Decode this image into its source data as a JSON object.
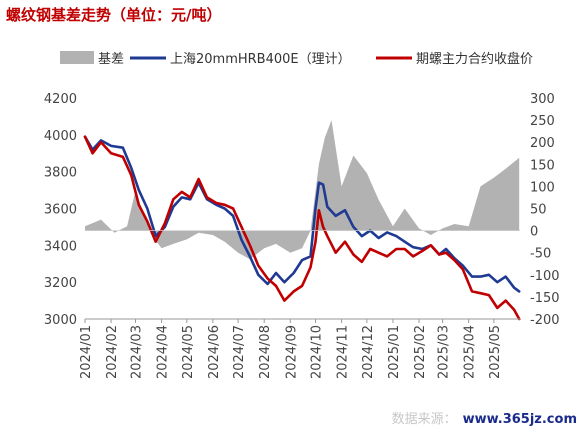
{
  "title": "螺纹钢基差走势（单位：元/吨）",
  "watermark": {
    "faint": "数据来源：",
    "site": "www.365jz.com"
  },
  "chart_data": {
    "type": "line",
    "title": "螺纹钢基差走势（单位：元/吨）",
    "x_range": [
      "2024-01-01",
      "2025-06-01"
    ],
    "x_ticks": [
      "2024/01",
      "2024/02",
      "2024/03",
      "2024/04",
      "2024/05",
      "2024/06",
      "2024/07",
      "2024/08",
      "2024/09",
      "2024/10",
      "2024/11",
      "2024/12",
      "2025/01",
      "2025/02",
      "2025/03",
      "2025/04",
      "2025/05"
    ],
    "y_left": {
      "min": 3000,
      "max": 4200,
      "ticks": [
        3000,
        3200,
        3400,
        3600,
        3800,
        4000,
        4200
      ]
    },
    "y_right": {
      "min": -200,
      "max": 300,
      "ticks": [
        -200,
        -150,
        -100,
        -50,
        0,
        50,
        100,
        150,
        200,
        250,
        300
      ]
    },
    "grid": false,
    "legend_position": "top",
    "series": [
      {
        "name": "基差",
        "type": "area",
        "axis": "right",
        "color": "#b2b2b2",
        "points": [
          [
            "2024-01-01",
            10
          ],
          [
            "2024-01-20",
            25
          ],
          [
            "2024-02-05",
            -5
          ],
          [
            "2024-02-20",
            10
          ],
          [
            "2024-03-01",
            90
          ],
          [
            "2024-03-10",
            40
          ],
          [
            "2024-03-20",
            -10
          ],
          [
            "2024-04-01",
            -40
          ],
          [
            "2024-04-15",
            -30
          ],
          [
            "2024-05-01",
            -20
          ],
          [
            "2024-05-15",
            -5
          ],
          [
            "2024-06-01",
            -10
          ],
          [
            "2024-06-15",
            -25
          ],
          [
            "2024-07-01",
            -50
          ],
          [
            "2024-07-15",
            -65
          ],
          [
            "2024-08-01",
            -40
          ],
          [
            "2024-08-15",
            -30
          ],
          [
            "2024-09-01",
            -50
          ],
          [
            "2024-09-15",
            -40
          ],
          [
            "2024-09-25",
            0
          ],
          [
            "2024-10-05",
            150
          ],
          [
            "2024-10-12",
            210
          ],
          [
            "2024-10-20",
            250
          ],
          [
            "2024-11-01",
            100
          ],
          [
            "2024-11-15",
            170
          ],
          [
            "2024-12-01",
            130
          ],
          [
            "2024-12-15",
            70
          ],
          [
            "2025-01-01",
            10
          ],
          [
            "2025-01-15",
            50
          ],
          [
            "2025-02-01",
            5
          ],
          [
            "2025-02-15",
            -10
          ],
          [
            "2025-03-01",
            5
          ],
          [
            "2025-03-15",
            15
          ],
          [
            "2025-04-01",
            10
          ],
          [
            "2025-04-15",
            100
          ],
          [
            "2025-05-01",
            120
          ],
          [
            "2025-05-15",
            140
          ],
          [
            "2025-05-31",
            165
          ]
        ]
      },
      {
        "name": "上海20mmHRB400E（理计）",
        "type": "line",
        "axis": "left",
        "color": "#1f3a93",
        "points": [
          [
            "2024-01-01",
            3990
          ],
          [
            "2024-01-10",
            3920
          ],
          [
            "2024-01-20",
            3970
          ],
          [
            "2024-02-01",
            3940
          ],
          [
            "2024-02-15",
            3930
          ],
          [
            "2024-02-25",
            3820
          ],
          [
            "2024-03-05",
            3700
          ],
          [
            "2024-03-15",
            3600
          ],
          [
            "2024-03-25",
            3450
          ],
          [
            "2024-04-05",
            3500
          ],
          [
            "2024-04-15",
            3610
          ],
          [
            "2024-04-25",
            3660
          ],
          [
            "2024-05-05",
            3650
          ],
          [
            "2024-05-15",
            3740
          ],
          [
            "2024-05-25",
            3650
          ],
          [
            "2024-06-05",
            3620
          ],
          [
            "2024-06-15",
            3600
          ],
          [
            "2024-06-25",
            3560
          ],
          [
            "2024-07-05",
            3430
          ],
          [
            "2024-07-15",
            3340
          ],
          [
            "2024-07-25",
            3240
          ],
          [
            "2024-08-05",
            3190
          ],
          [
            "2024-08-15",
            3250
          ],
          [
            "2024-08-25",
            3200
          ],
          [
            "2024-09-05",
            3250
          ],
          [
            "2024-09-15",
            3320
          ],
          [
            "2024-09-25",
            3340
          ],
          [
            "2024-10-01",
            3600
          ],
          [
            "2024-10-05",
            3740
          ],
          [
            "2024-10-10",
            3730
          ],
          [
            "2024-10-15",
            3610
          ],
          [
            "2024-10-25",
            3560
          ],
          [
            "2024-11-05",
            3590
          ],
          [
            "2024-11-15",
            3500
          ],
          [
            "2024-11-25",
            3450
          ],
          [
            "2024-12-05",
            3480
          ],
          [
            "2024-12-15",
            3440
          ],
          [
            "2024-12-25",
            3470
          ],
          [
            "2025-01-05",
            3450
          ],
          [
            "2025-01-15",
            3420
          ],
          [
            "2025-01-25",
            3390
          ],
          [
            "2025-02-05",
            3380
          ],
          [
            "2025-02-15",
            3400
          ],
          [
            "2025-02-25",
            3350
          ],
          [
            "2025-03-05",
            3380
          ],
          [
            "2025-03-15",
            3330
          ],
          [
            "2025-03-25",
            3290
          ],
          [
            "2025-04-05",
            3230
          ],
          [
            "2025-04-15",
            3230
          ],
          [
            "2025-04-25",
            3240
          ],
          [
            "2025-05-05",
            3200
          ],
          [
            "2025-05-15",
            3230
          ],
          [
            "2025-05-25",
            3170
          ],
          [
            "2025-05-31",
            3150
          ]
        ]
      },
      {
        "name": "期螺主力合约收盘价",
        "type": "line",
        "axis": "left",
        "color": "#c00000",
        "points": [
          [
            "2024-01-01",
            3990
          ],
          [
            "2024-01-10",
            3900
          ],
          [
            "2024-01-20",
            3960
          ],
          [
            "2024-02-01",
            3900
          ],
          [
            "2024-02-15",
            3880
          ],
          [
            "2024-02-25",
            3780
          ],
          [
            "2024-03-05",
            3620
          ],
          [
            "2024-03-15",
            3530
          ],
          [
            "2024-03-25",
            3420
          ],
          [
            "2024-04-05",
            3520
          ],
          [
            "2024-04-15",
            3650
          ],
          [
            "2024-04-25",
            3690
          ],
          [
            "2024-05-05",
            3660
          ],
          [
            "2024-05-15",
            3760
          ],
          [
            "2024-05-25",
            3660
          ],
          [
            "2024-06-05",
            3630
          ],
          [
            "2024-06-15",
            3620
          ],
          [
            "2024-06-25",
            3600
          ],
          [
            "2024-07-05",
            3500
          ],
          [
            "2024-07-15",
            3400
          ],
          [
            "2024-07-25",
            3290
          ],
          [
            "2024-08-05",
            3220
          ],
          [
            "2024-08-15",
            3180
          ],
          [
            "2024-08-25",
            3100
          ],
          [
            "2024-09-05",
            3150
          ],
          [
            "2024-09-15",
            3180
          ],
          [
            "2024-09-25",
            3280
          ],
          [
            "2024-10-01",
            3420
          ],
          [
            "2024-10-05",
            3590
          ],
          [
            "2024-10-10",
            3500
          ],
          [
            "2024-10-15",
            3450
          ],
          [
            "2024-10-25",
            3360
          ],
          [
            "2024-11-05",
            3420
          ],
          [
            "2024-11-15",
            3350
          ],
          [
            "2024-11-25",
            3310
          ],
          [
            "2024-12-05",
            3380
          ],
          [
            "2024-12-15",
            3360
          ],
          [
            "2024-12-25",
            3340
          ],
          [
            "2025-01-05",
            3380
          ],
          [
            "2025-01-15",
            3380
          ],
          [
            "2025-01-25",
            3340
          ],
          [
            "2025-02-05",
            3370
          ],
          [
            "2025-02-15",
            3400
          ],
          [
            "2025-02-25",
            3350
          ],
          [
            "2025-03-05",
            3360
          ],
          [
            "2025-03-15",
            3320
          ],
          [
            "2025-03-25",
            3270
          ],
          [
            "2025-04-05",
            3150
          ],
          [
            "2025-04-15",
            3140
          ],
          [
            "2025-04-25",
            3130
          ],
          [
            "2025-05-05",
            3060
          ],
          [
            "2025-05-15",
            3100
          ],
          [
            "2025-05-25",
            3050
          ],
          [
            "2025-05-31",
            3000
          ]
        ]
      }
    ]
  }
}
